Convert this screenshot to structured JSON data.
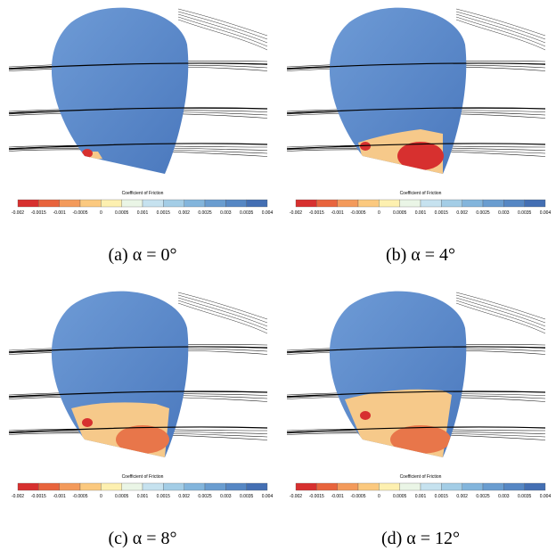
{
  "figure": {
    "panels": [
      {
        "caption": "(a) α = 0°",
        "colorbar": {
          "title": "Coefficient of Friction",
          "ticks": [
            "-0.002",
            "-0.0015",
            "-0.001",
            "-0.0005",
            "0",
            "0.0005",
            "0.001",
            "0.0015",
            "0.002",
            "0.0025",
            "0.003",
            "0.0035",
            "0.004"
          ]
        }
      },
      {
        "caption": "(b) α = 4°",
        "colorbar": {
          "title": "Coefficient of Friction",
          "ticks": [
            "-0.002",
            "-0.0015",
            "-0.001",
            "-0.0005",
            "0",
            "0.0005",
            "0.001",
            "0.0015",
            "0.002",
            "0.0025",
            "0.003",
            "0.0035",
            "0.004"
          ]
        }
      },
      {
        "caption": "(c) α = 8°",
        "colorbar": {
          "title": "Coefficient of Friction",
          "ticks": [
            "-0.002",
            "-0.0015",
            "-0.001",
            "-0.0005",
            "0",
            "0.0005",
            "0.001",
            "0.0015",
            "0.002",
            "0.0025",
            "0.003",
            "0.0035",
            "0.004"
          ]
        }
      },
      {
        "caption": "(d) α = 12°",
        "colorbar": {
          "title": "Coefficient of Friction",
          "ticks": [
            "-0.002",
            "-0.0015",
            "-0.001",
            "-0.0005",
            "0",
            "0.0005",
            "0.001",
            "0.0015",
            "0.002",
            "0.0025",
            "0.003",
            "0.0035",
            "0.004"
          ]
        }
      }
    ]
  }
}
